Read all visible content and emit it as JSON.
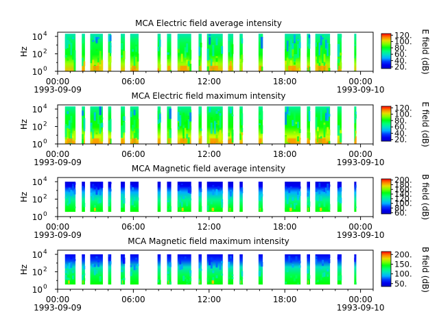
{
  "figure": {
    "instrument": "MCA"
  },
  "chart_data": [
    {
      "type": "heatmap",
      "title": "MCA  Electric field average intensity",
      "ylabel": "Hz",
      "yscale": "log",
      "ylim": [
        1,
        30000
      ],
      "ytick_labels": [
        "10",
        "10",
        "10"
      ],
      "ytick_exponents": [
        "0",
        "2",
        "4"
      ],
      "xlim": [
        "1993-09-09 00:00",
        "1993-09-10 01:00"
      ],
      "xtick_labels": [
        "00:00",
        "06:00",
        "12:00",
        "18:00",
        "00:00"
      ],
      "xdate_labels": [
        "1993-09-09",
        "1993-09-10"
      ],
      "colorbar_label": "E field (dB)",
      "colorbar_range": [
        15,
        125
      ],
      "colorbar_ticks": [
        "20.",
        "40.",
        "60.",
        "80.",
        "100.",
        "120."
      ],
      "colors": {
        "low": "#0000c8",
        "high": "#ff0000"
      }
    },
    {
      "type": "heatmap",
      "title": "MCA  Electric field maximum intensity",
      "ylabel": "Hz",
      "yscale": "log",
      "ylim": [
        1,
        30000
      ],
      "ytick_labels": [
        "10",
        "10",
        "10"
      ],
      "ytick_exponents": [
        "0",
        "2",
        "4"
      ],
      "xlim": [
        "1993-09-09 00:00",
        "1993-09-10 01:00"
      ],
      "xtick_labels": [
        "00:00",
        "06:00",
        "12:00",
        "18:00",
        "00:00"
      ],
      "xdate_labels": [
        "1993-09-09",
        "1993-09-10"
      ],
      "colorbar_label": "E field (dB)",
      "colorbar_range": [
        15,
        125
      ],
      "colorbar_ticks": [
        "20.",
        "40.",
        "60.",
        "80.",
        "100.",
        "120."
      ],
      "colors": {
        "low": "#0000c8",
        "high": "#ff0000"
      }
    },
    {
      "type": "heatmap",
      "title": "MCA  Magnetic field average intensity",
      "ylabel": "Hz",
      "yscale": "log",
      "ylim": [
        1,
        30000
      ],
      "ytick_labels": [
        "10",
        "10",
        "10"
      ],
      "ytick_exponents": [
        "0",
        "2",
        "4"
      ],
      "xlim": [
        "1993-09-09 00:00",
        "1993-09-10 01:00"
      ],
      "xtick_labels": [
        "00:00",
        "06:00",
        "12:00",
        "18:00",
        "00:00"
      ],
      "xdate_labels": [
        "1993-09-09",
        "1993-09-10"
      ],
      "colorbar_label": "B field (dB)",
      "colorbar_range": [
        55,
        205
      ],
      "colorbar_ticks": [
        "60.",
        "80.",
        "100.",
        "120.",
        "140.",
        "160.",
        "180.",
        "200."
      ],
      "colors": {
        "low": "#0000c8",
        "high": "#ff0000"
      }
    },
    {
      "type": "heatmap",
      "title": "MCA  Magnetic field maximum intensity",
      "ylabel": "Hz",
      "yscale": "log",
      "ylim": [
        1,
        30000
      ],
      "ytick_labels": [
        "10",
        "10",
        "10"
      ],
      "ytick_exponents": [
        "0",
        "2",
        "4"
      ],
      "xlim": [
        "1993-09-09 00:00",
        "1993-09-10 01:00"
      ],
      "xtick_labels": [
        "00:00",
        "06:00",
        "12:00",
        "18:00",
        "00:00"
      ],
      "xdate_labels": [
        "1993-09-09",
        "1993-09-10"
      ],
      "colorbar_label": "B field (dB)",
      "colorbar_range": [
        35,
        215
      ],
      "colorbar_ticks": [
        "50.",
        "100.",
        "150.",
        "200."
      ],
      "colors": {
        "low": "#0000c8",
        "high": "#ff0000"
      }
    }
  ],
  "data_segments": [
    [
      "00:35",
      "01:25"
    ],
    [
      "01:55",
      "02:10"
    ],
    [
      "02:35",
      "03:35"
    ],
    [
      "04:00",
      "04:15"
    ],
    [
      "05:00",
      "05:20"
    ],
    [
      "05:45",
      "06:25"
    ],
    [
      "07:55",
      "08:10"
    ],
    [
      "08:40",
      "09:00"
    ],
    [
      "09:30",
      "10:35"
    ],
    [
      "11:10",
      "11:25"
    ],
    [
      "11:50",
      "13:05"
    ],
    [
      "13:30",
      "13:55"
    ],
    [
      "14:25",
      "14:40"
    ],
    [
      "15:55",
      "16:15"
    ],
    [
      "18:00",
      "19:15"
    ],
    [
      "19:45",
      "20:00"
    ],
    [
      "20:25",
      "21:35"
    ],
    [
      "22:10",
      "22:30"
    ],
    [
      "23:30",
      "23:40"
    ]
  ]
}
